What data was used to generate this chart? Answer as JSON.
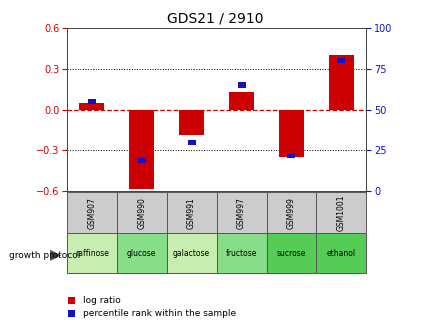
{
  "title": "GDS21 / 2910",
  "samples": [
    "GSM907",
    "GSM990",
    "GSM991",
    "GSM997",
    "GSM999",
    "GSM1001"
  ],
  "conditions": [
    "raffinose",
    "glucose",
    "galactose",
    "fructose",
    "sucrose",
    "ethanol"
  ],
  "log_ratios": [
    0.05,
    -0.58,
    -0.19,
    0.13,
    -0.35,
    0.4
  ],
  "percentile_ranks": [
    55,
    19,
    30,
    65,
    22,
    80
  ],
  "ylim_left": [
    -0.6,
    0.6
  ],
  "yticks_left": [
    -0.6,
    -0.3,
    0,
    0.3,
    0.6
  ],
  "ylim_right": [
    0,
    100
  ],
  "yticks_right": [
    0,
    25,
    50,
    75,
    100
  ],
  "bar_color_red": "#cc0000",
  "bar_color_blue": "#1111cc",
  "zero_line_color": "#cc0000",
  "grid_color": "#000000",
  "bg_color": "#ffffff",
  "left_tick_color": "#cc0000",
  "right_tick_color": "#1111cc",
  "cell_bg_gsm": "#cccccc",
  "cell_bg_condition_light": "#bbeeaa",
  "cell_bg_condition_dark": "#44cc44",
  "cell_border": "#555555",
  "legend_red_label": "log ratio",
  "legend_blue_label": "percentile rank within the sample",
  "growth_protocol_label": "growth protocol",
  "bar_width": 0.5,
  "blue_sq_size": 0.04
}
